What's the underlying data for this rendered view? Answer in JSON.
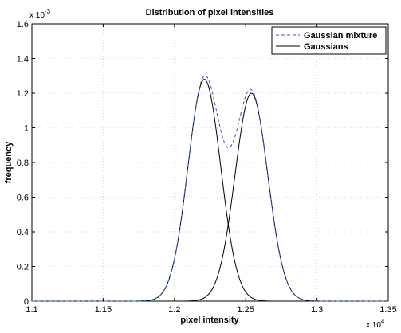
{
  "chart_data": {
    "type": "line",
    "title": "Distribution of pixel intensities",
    "xlabel": "pixel intensity",
    "ylabel": "frequency",
    "x_multiplier_label": "x 10",
    "x_multiplier_exponent": "4",
    "y_multiplier_label": "x 10",
    "y_multiplier_exponent": "-3",
    "xlim": [
      1.1,
      1.35
    ],
    "ylim": [
      0,
      1.6
    ],
    "xticks": [
      1.1,
      1.15,
      1.2,
      1.25,
      1.3,
      1.35
    ],
    "xtick_labels": [
      "1.1",
      "1.15",
      "1.2",
      "1.25",
      "1.3",
      "1.35"
    ],
    "yticks": [
      0,
      0.2,
      0.4,
      0.6,
      0.8,
      1,
      1.2,
      1.4,
      1.6
    ],
    "ytick_labels": [
      "0",
      "0.2",
      "0.4",
      "0.6",
      "0.8",
      "1",
      "1.2",
      "1.4",
      "1.6"
    ],
    "grid": true,
    "legend_position": "top-right",
    "components": [
      {
        "mean": 1.221,
        "sd": 0.0115,
        "peak": 1.28
      },
      {
        "mean": 1.254,
        "sd": 0.0115,
        "peak": 1.2
      }
    ],
    "series": [
      {
        "name": "Gaussian mixture",
        "style": "dashed",
        "color": "#3355cc",
        "role": "mixture"
      },
      {
        "name": "Gaussians",
        "style": "solid",
        "color": "#000000",
        "role": "components"
      }
    ]
  }
}
